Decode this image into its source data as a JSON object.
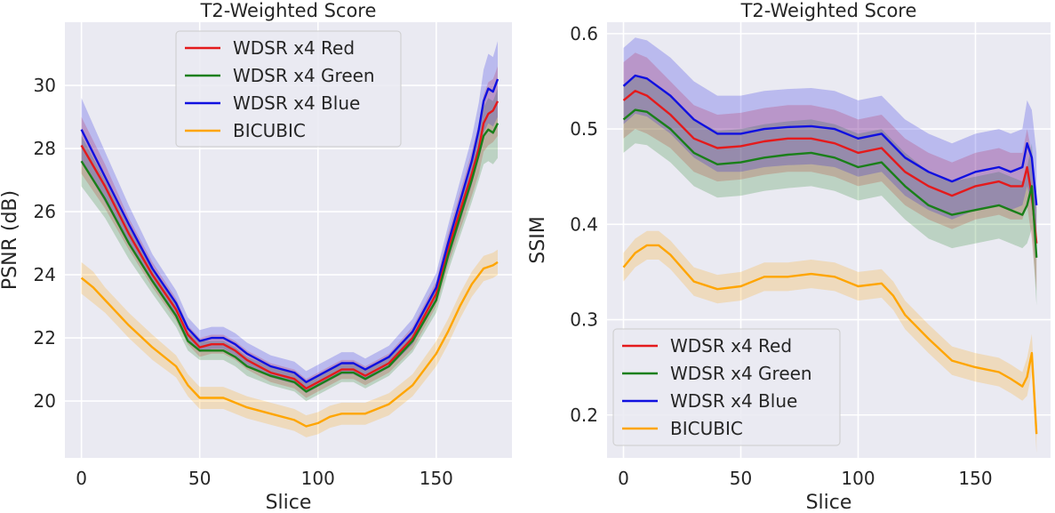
{
  "chart_data": [
    {
      "type": "line",
      "title": "T2-Weighted Score",
      "xlabel": "Slice",
      "ylabel": "PSNR (dB)",
      "xlim": [
        -7,
        182
      ],
      "ylim": [
        18.2,
        32.0
      ],
      "xticks": [
        0,
        50,
        100,
        150
      ],
      "yticks": [
        20,
        22,
        24,
        26,
        28,
        30
      ],
      "grid": true,
      "legend_position": "upper center",
      "series": [
        {
          "name": "WDSR x4 Red",
          "color": "#e41a1c",
          "x": [
            0,
            10,
            20,
            30,
            40,
            45,
            50,
            55,
            60,
            65,
            70,
            80,
            90,
            95,
            100,
            110,
            115,
            120,
            130,
            140,
            150,
            155,
            160,
            165,
            168,
            170,
            172,
            174,
            176
          ],
          "y": [
            28.1,
            26.8,
            25.3,
            24.0,
            22.9,
            22.1,
            21.7,
            21.8,
            21.8,
            21.6,
            21.3,
            20.9,
            20.7,
            20.4,
            20.6,
            21.0,
            21.0,
            20.8,
            21.2,
            22.0,
            23.4,
            24.8,
            26.0,
            27.2,
            28.0,
            28.8,
            29.1,
            29.2,
            29.5
          ],
          "band": [
            0.9,
            0.7,
            0.5,
            0.4,
            0.35,
            0.3,
            0.3,
            0.3,
            0.3,
            0.3,
            0.3,
            0.3,
            0.3,
            0.3,
            0.3,
            0.3,
            0.3,
            0.3,
            0.3,
            0.35,
            0.4,
            0.5,
            0.6,
            0.7,
            0.8,
            0.9,
            1.0,
            1.0,
            1.1
          ]
        },
        {
          "name": "WDSR x4 Green",
          "color": "#1a7f1a",
          "x": [
            0,
            10,
            20,
            30,
            40,
            45,
            50,
            55,
            60,
            65,
            70,
            80,
            90,
            95,
            100,
            110,
            115,
            120,
            130,
            140,
            150,
            155,
            160,
            165,
            168,
            170,
            172,
            174,
            176
          ],
          "y": [
            27.6,
            26.4,
            25.0,
            23.8,
            22.7,
            21.9,
            21.6,
            21.6,
            21.6,
            21.4,
            21.1,
            20.8,
            20.6,
            20.3,
            20.5,
            20.9,
            20.9,
            20.7,
            21.1,
            21.9,
            23.2,
            24.6,
            25.8,
            27.0,
            27.8,
            28.4,
            28.6,
            28.5,
            28.8
          ],
          "band": [
            0.8,
            0.6,
            0.5,
            0.4,
            0.35,
            0.3,
            0.3,
            0.3,
            0.3,
            0.3,
            0.3,
            0.3,
            0.3,
            0.3,
            0.3,
            0.3,
            0.3,
            0.3,
            0.3,
            0.35,
            0.4,
            0.5,
            0.6,
            0.7,
            0.8,
            0.9,
            1.0,
            1.0,
            1.1
          ]
        },
        {
          "name": "WDSR x4 Blue",
          "color": "#1010e0",
          "x": [
            0,
            10,
            20,
            30,
            40,
            45,
            50,
            55,
            60,
            65,
            70,
            80,
            90,
            95,
            100,
            110,
            115,
            120,
            130,
            140,
            150,
            155,
            160,
            165,
            168,
            170,
            172,
            174,
            176
          ],
          "y": [
            28.6,
            27.1,
            25.6,
            24.2,
            23.1,
            22.3,
            21.9,
            22.0,
            22.0,
            21.8,
            21.5,
            21.1,
            20.9,
            20.6,
            20.8,
            21.2,
            21.2,
            21.0,
            21.4,
            22.2,
            23.6,
            25.0,
            26.3,
            27.6,
            28.6,
            29.5,
            29.9,
            29.8,
            30.2
          ],
          "band": [
            1.0,
            0.8,
            0.6,
            0.45,
            0.4,
            0.35,
            0.35,
            0.35,
            0.35,
            0.35,
            0.35,
            0.35,
            0.35,
            0.35,
            0.35,
            0.35,
            0.35,
            0.35,
            0.35,
            0.4,
            0.45,
            0.55,
            0.65,
            0.75,
            0.85,
            1.0,
            1.1,
            1.1,
            1.2
          ]
        },
        {
          "name": "BICUBIC",
          "color": "#ffa500",
          "x": [
            0,
            5,
            10,
            20,
            30,
            40,
            45,
            50,
            55,
            60,
            70,
            80,
            90,
            95,
            100,
            105,
            110,
            115,
            120,
            130,
            140,
            150,
            155,
            160,
            165,
            170,
            174,
            176
          ],
          "y": [
            23.9,
            23.6,
            23.2,
            22.4,
            21.7,
            21.1,
            20.5,
            20.1,
            20.1,
            20.1,
            19.8,
            19.6,
            19.4,
            19.2,
            19.3,
            19.5,
            19.6,
            19.6,
            19.6,
            19.9,
            20.5,
            21.5,
            22.2,
            23.0,
            23.7,
            24.2,
            24.3,
            24.4
          ],
          "band": [
            0.5,
            0.5,
            0.4,
            0.4,
            0.4,
            0.35,
            0.35,
            0.35,
            0.35,
            0.35,
            0.35,
            0.35,
            0.35,
            0.35,
            0.35,
            0.35,
            0.35,
            0.35,
            0.35,
            0.35,
            0.35,
            0.4,
            0.4,
            0.4,
            0.4,
            0.4,
            0.4,
            0.4
          ]
        }
      ]
    },
    {
      "type": "line",
      "title": "T2-Weighted Score",
      "xlabel": "Slice",
      "ylabel": "SSIM",
      "xlim": [
        -7,
        182
      ],
      "ylim": [
        0.155,
        0.612
      ],
      "xticks": [
        0,
        50,
        100,
        150
      ],
      "yticks": [
        0.2,
        0.3,
        0.4,
        0.5,
        0.6
      ],
      "grid": true,
      "legend_position": "lower left",
      "series": [
        {
          "name": "WDSR x4 Red",
          "color": "#e41a1c",
          "x": [
            0,
            5,
            10,
            20,
            30,
            40,
            50,
            60,
            70,
            80,
            90,
            100,
            110,
            120,
            130,
            140,
            150,
            160,
            165,
            170,
            172,
            174,
            176
          ],
          "y": [
            0.53,
            0.54,
            0.535,
            0.515,
            0.49,
            0.48,
            0.482,
            0.487,
            0.49,
            0.49,
            0.485,
            0.475,
            0.48,
            0.455,
            0.44,
            0.43,
            0.44,
            0.445,
            0.44,
            0.44,
            0.46,
            0.43,
            0.38
          ],
          "band": [
            0.04,
            0.04,
            0.04,
            0.035,
            0.035,
            0.035,
            0.035,
            0.035,
            0.035,
            0.035,
            0.035,
            0.035,
            0.035,
            0.035,
            0.035,
            0.035,
            0.035,
            0.035,
            0.035,
            0.035,
            0.04,
            0.045,
            0.05
          ]
        },
        {
          "name": "WDSR x4 Green",
          "color": "#1a7f1a",
          "x": [
            0,
            5,
            10,
            20,
            30,
            40,
            50,
            60,
            70,
            80,
            90,
            100,
            110,
            120,
            130,
            140,
            150,
            160,
            165,
            170,
            172,
            174,
            176
          ],
          "y": [
            0.51,
            0.52,
            0.518,
            0.5,
            0.475,
            0.463,
            0.465,
            0.47,
            0.473,
            0.475,
            0.47,
            0.46,
            0.465,
            0.44,
            0.42,
            0.41,
            0.415,
            0.42,
            0.415,
            0.41,
            0.42,
            0.44,
            0.365
          ],
          "band": [
            0.035,
            0.035,
            0.035,
            0.035,
            0.035,
            0.035,
            0.035,
            0.035,
            0.035,
            0.035,
            0.035,
            0.035,
            0.035,
            0.035,
            0.035,
            0.035,
            0.035,
            0.035,
            0.035,
            0.035,
            0.04,
            0.045,
            0.05
          ]
        },
        {
          "name": "WDSR x4 Blue",
          "color": "#1010e0",
          "x": [
            0,
            5,
            10,
            20,
            30,
            40,
            50,
            60,
            70,
            80,
            90,
            100,
            110,
            120,
            130,
            140,
            150,
            160,
            165,
            170,
            172,
            174,
            176
          ],
          "y": [
            0.545,
            0.556,
            0.553,
            0.535,
            0.51,
            0.495,
            0.495,
            0.5,
            0.502,
            0.503,
            0.5,
            0.49,
            0.495,
            0.47,
            0.455,
            0.445,
            0.455,
            0.46,
            0.455,
            0.46,
            0.485,
            0.47,
            0.42
          ],
          "band": [
            0.04,
            0.04,
            0.04,
            0.04,
            0.04,
            0.04,
            0.04,
            0.04,
            0.04,
            0.04,
            0.04,
            0.04,
            0.04,
            0.04,
            0.04,
            0.04,
            0.04,
            0.04,
            0.04,
            0.04,
            0.045,
            0.05,
            0.055
          ]
        },
        {
          "name": "BICUBIC",
          "color": "#ffa500",
          "x": [
            0,
            5,
            10,
            15,
            20,
            30,
            40,
            50,
            60,
            70,
            80,
            90,
            100,
            110,
            115,
            120,
            130,
            140,
            150,
            160,
            165,
            170,
            172,
            174,
            176
          ],
          "y": [
            0.355,
            0.37,
            0.378,
            0.378,
            0.368,
            0.34,
            0.332,
            0.335,
            0.345,
            0.345,
            0.348,
            0.345,
            0.335,
            0.338,
            0.325,
            0.305,
            0.28,
            0.257,
            0.25,
            0.245,
            0.238,
            0.23,
            0.24,
            0.265,
            0.18
          ],
          "band": [
            0.015,
            0.015,
            0.015,
            0.015,
            0.015,
            0.015,
            0.015,
            0.015,
            0.015,
            0.015,
            0.015,
            0.015,
            0.015,
            0.015,
            0.015,
            0.015,
            0.015,
            0.015,
            0.015,
            0.015,
            0.015,
            0.015,
            0.02,
            0.02,
            0.02
          ]
        }
      ]
    }
  ]
}
